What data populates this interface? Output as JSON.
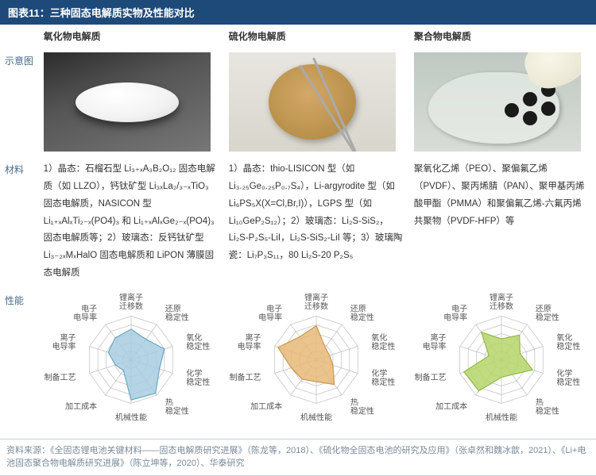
{
  "header": {
    "title": "图表11：三种固态电解质实物及性能对比"
  },
  "row_labels": {
    "schematic": "示意图",
    "material": "材料",
    "performance": "性能"
  },
  "columns": [
    {
      "head": "氧化物电解质"
    },
    {
      "head": "硫化物电解质"
    },
    {
      "head": "聚合物电解质"
    }
  ],
  "materials": {
    "oxide": "1）晶态：石榴石型 Li₃₊ₓA₃B₂O₁₂ 固态电解质（如 LLZO），钙钛矿型 Li₃ₓLa₂/₃₋ₓTiO₃ 固态电解质，NASICON 型 Li₁₊ₓAlₓTi₂₋ₓ(PO4)₃ 和 Li₁₊ₓAlₓGe₂₋ₓ(PO4)₃ 固态电解质等；2）玻璃态：反钙钛矿型 Li₃₋₂ₓMₓHalO 固态电解质和 LiPON 薄膜固态电解质",
    "sulfide": "1）晶态：thio-LISICON 型（如 Li₃.₂₅Ge₀.₂₅P₀.₇S₄），Li-argyrodite 型（如 Li₆PS₅X(X=Cl,Br,I)），LGPS 型（如 Li₁₀GeP₂S₁₂）；2）玻璃态：Li₂S-SiS₂，Li₂S-P₂S₅-LiI，Li₂S-SiS₂-LiI 等；3）玻璃陶瓷：Li₇P₃S₁₁，80 Li₂S-20 P₂S₅",
    "polymer": "聚氧化乙烯（PEO）、聚偏氟乙烯（PVDF）、聚丙烯腈（PAN）、聚甲基丙烯酸甲酯（PMMA）和聚偏氟乙烯-六氟丙烯共聚物（PVDF-HFP）等"
  },
  "radar": {
    "axes": [
      "锂离子迁移数",
      "还原稳定性",
      "氧化稳定性",
      "化学稳定性",
      "热稳定性",
      "机械性能",
      "加工成本",
      "制备工艺",
      "离子电导率",
      "电子电导率"
    ],
    "stroke_color": "#bfbfbf",
    "label_fontsize": 10,
    "series": [
      {
        "name": "oxide",
        "fill": "#a8cde0",
        "fill_opacity": 0.85,
        "stroke": "#6aa8c4",
        "values": [
          0.7,
          0.58,
          0.8,
          0.68,
          0.95,
          0.92,
          0.3,
          0.38,
          0.55,
          0.62
        ]
      },
      {
        "name": "sulfide",
        "fill": "#e8b878",
        "fill_opacity": 0.85,
        "stroke": "#c99850",
        "values": [
          0.78,
          0.35,
          0.32,
          0.4,
          0.7,
          0.5,
          0.55,
          0.6,
          0.92,
          0.65
        ]
      },
      {
        "name": "polymer",
        "fill": "#b6d66a",
        "fill_opacity": 0.85,
        "stroke": "#94b848",
        "values": [
          0.48,
          0.7,
          0.45,
          0.75,
          0.42,
          0.4,
          0.88,
          0.9,
          0.3,
          0.78
        ]
      }
    ],
    "rings": 5
  },
  "source": "资料来源：《全固态锂电池关键材料——固态电解质研究进展》（陈龙等，2018）、《硫化物全固态电池的研究及应用》（张卓然和魏冰歆，2021）、《Li+电池固态聚合物电解质研究进展》（陈立坤等，2020）、华泰研究"
}
